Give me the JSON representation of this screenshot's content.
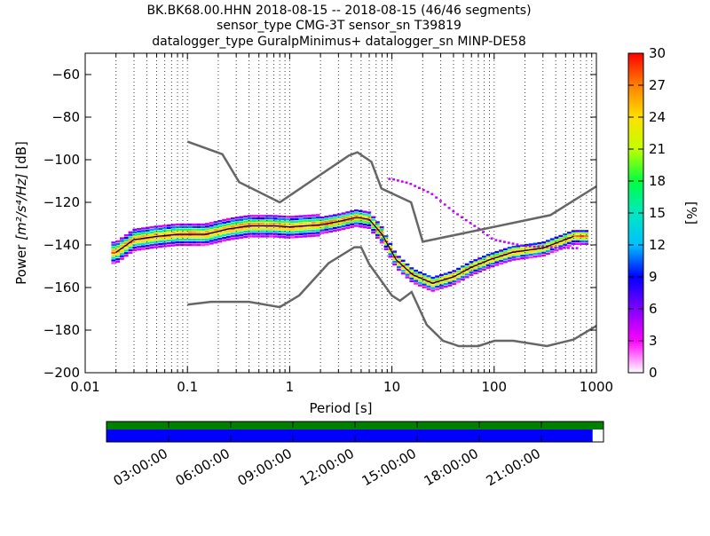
{
  "title_lines": [
    "BK.BK68.00.HHN   2018-08-15 -- 2018-08-15  (46/46 segments)",
    "sensor_type CMG-3T sensor_sn T39819",
    "datalogger_type GuralpMinimus+ datalogger_sn MINP-DE58"
  ],
  "chart_data": {
    "type": "heatmap",
    "xlabel": "Period [s]",
    "ylabel_prefix": "Power ",
    "ylabel_units": "[m²/s⁴/Hz]",
    "ylabel_suffix": " [dB]",
    "xscale": "log",
    "xlim": [
      0.01,
      1000
    ],
    "ylim": [
      -200,
      -50
    ],
    "x_ticks": [
      0.01,
      0.1,
      1,
      10,
      100,
      1000
    ],
    "x_tick_labels": [
      "0.01",
      "0.1",
      "1",
      "10",
      "100",
      "1000"
    ],
    "y_ticks": [
      -200,
      -180,
      -160,
      -140,
      -120,
      -100,
      -80,
      -60
    ],
    "y_tick_labels": [
      "−200",
      "−180",
      "−160",
      "−140",
      "−120",
      "−100",
      "−80",
      "−60"
    ],
    "grid": "dotted vertical lines at log sub-ticks",
    "colorbar": {
      "label": "[%]",
      "range": [
        0,
        30
      ],
      "ticks": [
        0,
        3,
        6,
        9,
        12,
        15,
        18,
        21,
        24,
        27,
        30
      ],
      "tick_labels": [
        "0",
        "3",
        "6",
        "9",
        "12",
        "15",
        "18",
        "21",
        "24",
        "27",
        "30"
      ],
      "colormap": [
        "#ffffff",
        "#ff00ff",
        "#8000ff",
        "#0000ff",
        "#00c0ff",
        "#00e8c0",
        "#00ff40",
        "#c0ff00",
        "#ffe000",
        "#ff8000",
        "#ff0000"
      ]
    },
    "nhnm": [
      [
        0.1,
        -91.5
      ],
      [
        0.22,
        -97.4
      ],
      [
        0.32,
        -110.5
      ],
      [
        0.8,
        -120.0
      ],
      [
        3.8,
        -98.0
      ],
      [
        4.6,
        -96.5
      ],
      [
        6.3,
        -101.0
      ],
      [
        7.9,
        -113.5
      ],
      [
        15.4,
        -120.0
      ],
      [
        20.0,
        -138.5
      ],
      [
        354.8,
        -126.0
      ],
      [
        1000,
        -112.5
      ]
    ],
    "nlnm": [
      [
        0.1,
        -168.0
      ],
      [
        0.17,
        -166.7
      ],
      [
        0.4,
        -166.7
      ],
      [
        0.8,
        -169.2
      ],
      [
        1.24,
        -163.7
      ],
      [
        2.4,
        -148.6
      ],
      [
        4.3,
        -141.1
      ],
      [
        5.0,
        -141.1
      ],
      [
        6.0,
        -149.0
      ],
      [
        10.0,
        -163.8
      ],
      [
        12.0,
        -166.2
      ],
      [
        15.6,
        -162.1
      ],
      [
        21.9,
        -177.5
      ],
      [
        31.6,
        -185.0
      ],
      [
        45.0,
        -187.5
      ],
      [
        70.0,
        -187.5
      ],
      [
        101.0,
        -185.0
      ],
      [
        154.0,
        -185.0
      ],
      [
        328.0,
        -187.5
      ],
      [
        600.0,
        -184.4
      ],
      [
        1000,
        -178.0
      ]
    ],
    "mode": [
      [
        0.02,
        -143.5
      ],
      [
        0.03,
        -137.5
      ],
      [
        0.05,
        -136.0
      ],
      [
        0.08,
        -135.0
      ],
      [
        0.15,
        -135.0
      ],
      [
        0.25,
        -132.5
      ],
      [
        0.4,
        -131.0
      ],
      [
        0.7,
        -131.0
      ],
      [
        1.0,
        -131.5
      ],
      [
        2.0,
        -130.5
      ],
      [
        3.0,
        -129.0
      ],
      [
        4.5,
        -127.0
      ],
      [
        6.0,
        -128.0
      ],
      [
        8.0,
        -135.0
      ],
      [
        11.0,
        -147.0
      ],
      [
        16.0,
        -154.0
      ],
      [
        25.0,
        -158.0
      ],
      [
        40.0,
        -155.0
      ],
      [
        60.0,
        -150.5
      ],
      [
        90.0,
        -147.0
      ],
      [
        150.0,
        -143.5
      ],
      [
        300.0,
        -141.5
      ],
      [
        600.0,
        -136.0
      ]
    ],
    "secondary_mode": [
      [
        10.0,
        -109.0
      ],
      [
        15.0,
        -111.0
      ],
      [
        25.0,
        -116.0
      ],
      [
        40.0,
        -124.0
      ],
      [
        70.0,
        -132.0
      ],
      [
        100.0,
        -137.5
      ],
      [
        200.0,
        -140.5
      ],
      [
        600.0,
        -141.5
      ]
    ],
    "availability": {
      "time_ticks": [
        "03:00:00",
        "06:00:00",
        "09:00:00",
        "12:00:00",
        "15:00:00",
        "18:00:00",
        "21:00:00"
      ],
      "coverage_fraction": 0.978,
      "colors": {
        "upper": "#008000",
        "lower": "#0000ff"
      }
    }
  }
}
